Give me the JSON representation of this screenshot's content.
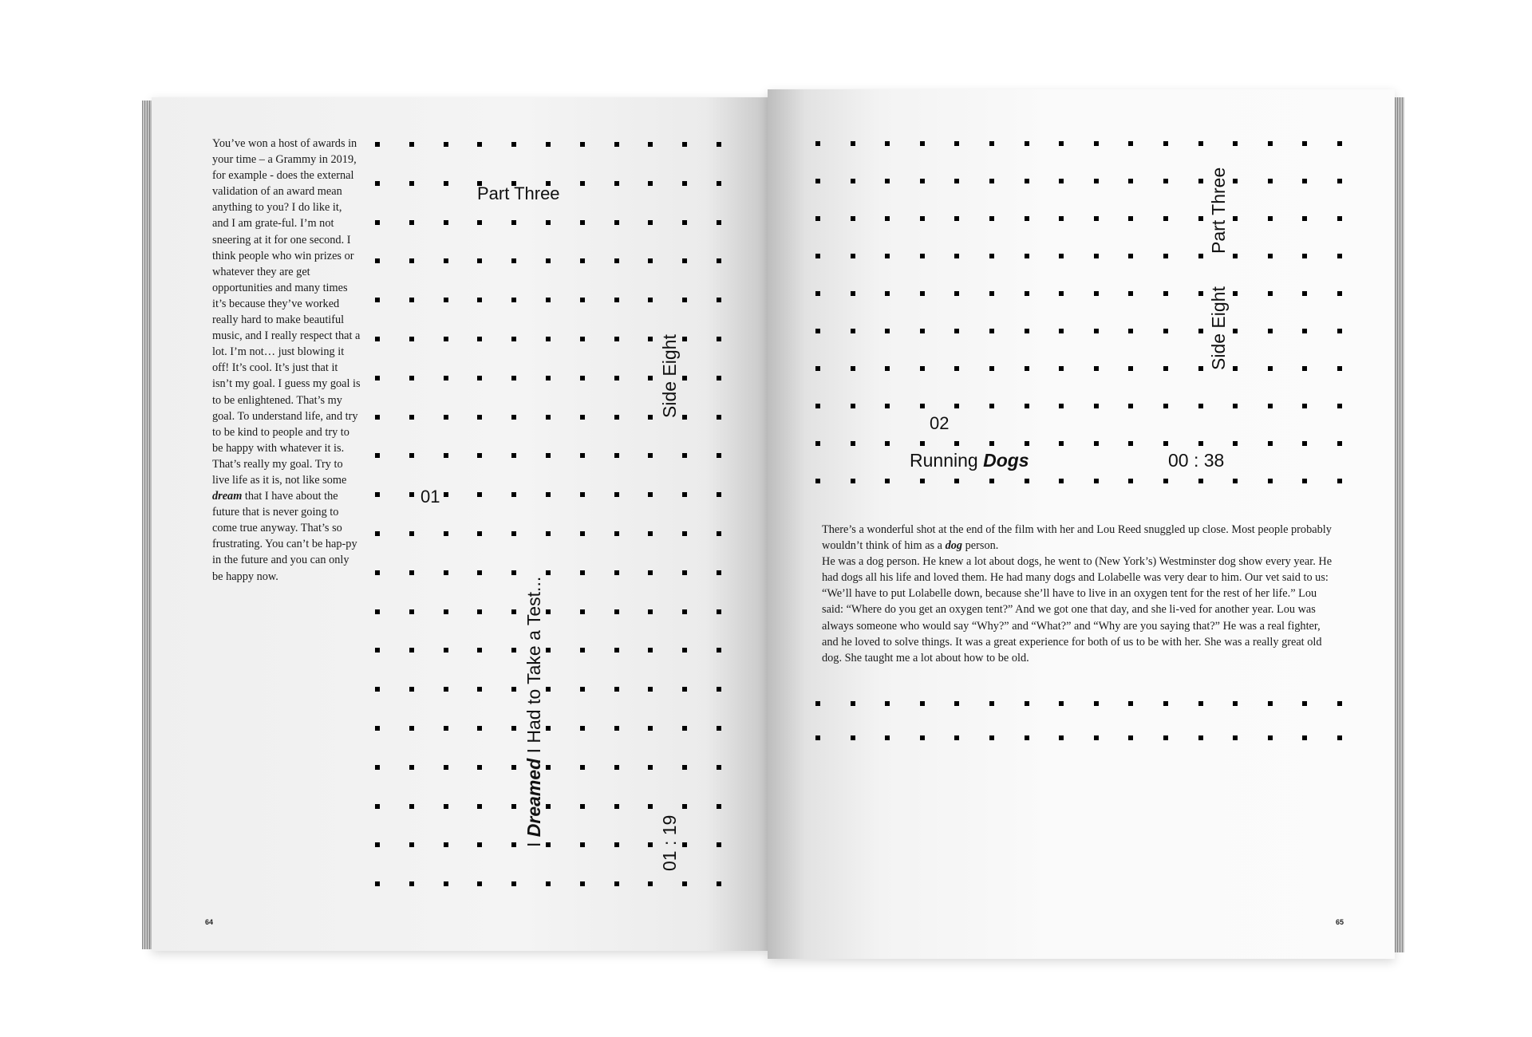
{
  "left_page": {
    "body_text": {
      "before": "You’ve won a host of awards in your time – a Grammy in 2019, for example - does the external validation of an award mean anything to you? I do like it, and I am grate-ful. I’m not sneering at it for one second. I think people who win prizes or whatever they are get opportunities and many times it’s because they’ve worked really hard to make beautiful music, and I really respect that a lot. I’m not… just blowing it off! It’s cool. It’s just that it isn’t my goal. I guess my goal is to be enlightened. That’s my goal. To understand life, and try to be kind to people and try to be happy with whatever it is. That’s really my goal. Try to live life as it is, not like some ",
      "emphasis": "dream",
      "after": " that I have about the future that is never going to come true anyway. That’s so frustrating. You can’t be hap-py in the future and you can only be happy now."
    },
    "part": "Part Three",
    "track_number": "01",
    "side": "Side Eight",
    "track_title": {
      "before": "I ",
      "emphasis": "Dreamed",
      "after": " I Had to Take a Test..."
    },
    "duration": "01 : 19",
    "page_number": "64"
  },
  "right_page": {
    "part": "Part Three",
    "side": "Side Eight",
    "track_number": "02",
    "track_title": {
      "before": "Running ",
      "emphasis": "Dogs"
    },
    "duration": "00 : 38",
    "body_text": {
      "p1_before": "There’s a wonderful shot at the end of the film with her and Lou Reed snuggled up close. Most people probably wouldn’t think of him as a ",
      "p1_emphasis": "dog",
      "p1_after": " person.",
      "p2": "He was a dog person. He knew a lot about dogs, he went to (New York’s) Westminster dog show every year. He had dogs all his life and loved them. He had many dogs and Lolabelle was very dear to him. Our vet said to us: “We’ll have to put Lolabelle down, because she’ll have to live in an oxygen tent for the rest of her life.” Lou said: “Where do you get an oxygen tent?” And we got one that day, and she li-ved for another year. Lou was always someone who would say “Why?” and “What?” and “Why are you saying that?” He was a real fighter, and he loved to solve things. It was a great experience for both of us to be with her. She was a really great old dog. She taught me a lot about how to be old."
    },
    "page_number": "65"
  },
  "colors": {
    "ink": "#000000",
    "paper": "#f5f5f5"
  }
}
